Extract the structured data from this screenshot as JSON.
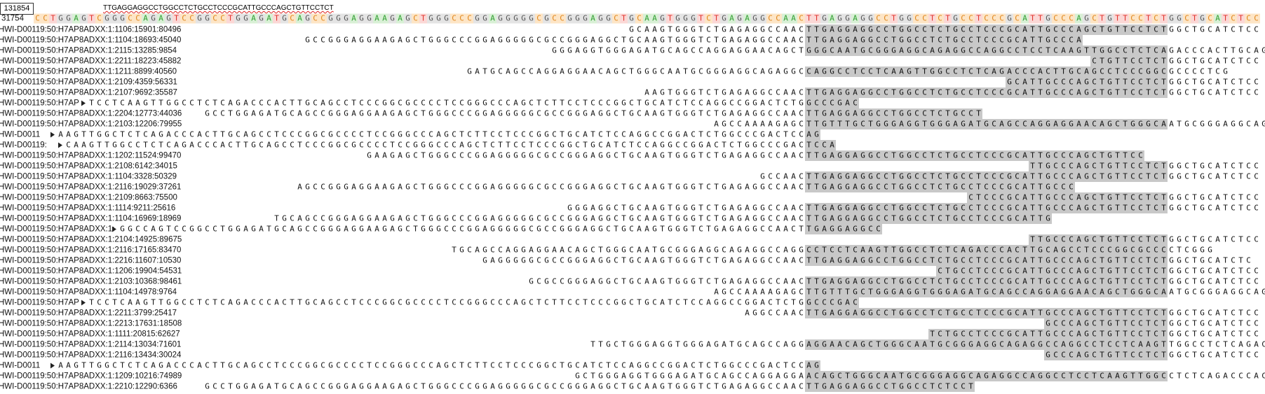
{
  "search": {
    "position": "131854",
    "query": "TTGAGGAGGCCTGGCCTCTGCCTCCCGCATTGCCCAGCTGTTCCTCT"
  },
  "reference": {
    "label": "31754",
    "sequence": "CCTGGAGTCGGGCCAGAGTCCGGCCTGGAGATGCAGCCGGGAGGAAGAGCTGGGCCCGGAGGGGGCGCCGGGAGGCTGCAAGTGGGTCTGAGAGGCCAACTTGAGGAGGCCTGGCCTCTGCCTCCCGCATTGCCCAGCTGTTCCTCTGGCTGCATCTCC",
    "base_colors": {
      "A": {
        "text": "#2f9e2f",
        "background": "#d9f0d6"
      },
      "C": {
        "text": "#e0861a",
        "background": "#fde5c6"
      },
      "G": {
        "text": "#555555",
        "background": "#e4e4e4"
      },
      "T": {
        "text": "#e0302a",
        "background": "#fbd8d6"
      }
    }
  },
  "match_color": "#c8c8c8",
  "reads": [
    {
      "name": "HWI-D00119:50:H7AP8ADXX:1:1106:15901:80496",
      "offset": 77,
      "sequence": "GCAAGTGGGTCTGAGAGGCCAACTTGAGGAGGCCTGGCCTCTGCCTCCCGCATTGCCCAGCTGTTCCTCTGGCTGCATCTCC"
    },
    {
      "name": "HWI-D00119:50:H7AP8ADXX:1:1104:18693:45040",
      "offset": 35,
      "sequence": "GCCGGGAGGAAGAGCTGGGCCCGGAGGGGGCGCCGGGAGGCTGCAAGTGGGTCTGAGAGGCCAACTTGAGGAGGCCTGGCCTCTGCCTCCCGCATTGCCCA"
    },
    {
      "name": "HWI-D00119:50:H7AP8ADXX:1:2115:13285:9854",
      "offset": 67,
      "sequence": "GGGAGGTGGGAGATGCAGCCAGGAGGAACAGCTGGGCAATGCGGGAGGCAGAGGCCAGGCCTCCTCAAGTTGGCCTCTCAGACCCACTTGCAG"
    },
    {
      "name": "HWI-D00119:50:H7AP8ADXX:1:2211:18223:45882",
      "offset": 137,
      "sequence": "CTGTTCCTCTGGCTGCATCTCC"
    },
    {
      "name": "HWI-D00119:50:H7AP8ADXX:1:1211:8899:40560",
      "offset": 56,
      "sequence": "GATGCAGCCAGGAGGAACAGCTGGGCAATGCGGGAGGCAGAGGCCAGGCCTCCTCAAGTTGGCCTCTCAGACCCACTTGCAGCCTCCCGGCGCCCCTCG"
    },
    {
      "name": "HWI-D00119:50:H7AP8ADXX:1:2109:4359:56331",
      "offset": 126,
      "sequence": "GCATTGCCCAGCTGTTCCTCTGGCTGCATCTCC"
    },
    {
      "name": "HWI-D00119:50:H7AP8ADXX:1:2107:9692:35587",
      "offset": 79,
      "sequence": "AAGTGGGTCTGAGAGGCCAACTTGAGGAGGCCTGGCCTCTGCCTCCCGCATTGCCCAGCTGTTCCTCTGGCTGCATCTCC"
    },
    {
      "name": "HWI-D00119:50:H7AP",
      "offset": 7,
      "sequence": "TCCTCAAGTTGGCCTCTCAGACCCACTTGCAGCCTCCCGGCGCCCCTCCGGGCCCAGCTCTTCCTCCCGGCTGCATCTCCAGGCCGGACTCTGGCCCGAC"
    },
    {
      "name": "HWI-D00119:50:H7AP8ADXX:1:2204:12773:44036",
      "offset": 22,
      "sequence": "GCCTGGAGATGCAGCCGGGAGGAAGAGCTGGGCCCGGAGGGGGCGCCGGGAGGCTGCAAGTGGGTCTGAGAGGCCAACTTGAGGAGGCCTGGCCTCTGCCT"
    },
    {
      "name": "HWI-D00119:50:H7AP8ADXX:1:2103:12206:79955",
      "offset": 88,
      "sequence": "AGCCAAAAGAGCTTGTTTGCTGGGAGGTGGGAGATGCAGCCAGGAGGAACAGCTGGGCAATGCGGGAGGCAG"
    },
    {
      "name": "HWI-D0011",
      "offset": 3,
      "sequence": "AAGTTGGCTCTCAGACCCACTTGCAGCCTCCCGGCGCCCCTCCGGGCCCAGCTCTTCCTCCCGGCTGCATCTCCAGGCCGGACTCTGGCCCGACTCCAG"
    },
    {
      "name": "HWI-D00119:",
      "offset": 4,
      "sequence": "CAAGTTGGCCTCTCAGACCCACTTGCAGCCTCCCGGCGCCCCTCCGGGCCCAGCTCTTCCTCCCGGCTGCATCTCCAGGCCGGACTCTGGCCCGACTCCA"
    },
    {
      "name": "HWI-D00119:50:H7AP8ADXX:1:1202:11524:99470",
      "offset": 43,
      "sequence": "GAAGAGCTGGGCCCGGAGGGGGCGCCGGGAGGCTGCAAGTGGGTCTGAGAGGCCAACTTGAGGAGGCCTGGCCTCTGCCTCCCGCATTGCCCAGCTGTTCC"
    },
    {
      "name": "HWI-D00119:50:H7AP8ADXX:1:2108:6142:34015",
      "offset": 129,
      "sequence": "TTGCCCAGCTGTTCCTCTGGCTGCATCTCC"
    },
    {
      "name": "HWI-D00119:50:H7AP8ADXX:1:1104:3328:50329",
      "offset": 94,
      "sequence": "GCCAACTTGAGGAGGCCTGGCCTCTGCCTCCCGCATTGCCCAGCTGTTCCTCTGGCTGCATCTCC"
    },
    {
      "name": "HWI-D00119:50:H7AP8ADXX:1:2116:19029:37261",
      "offset": 34,
      "sequence": "AGCCGGGAGGAAGAGCTGGGCCCGGAGGGGGCGCCGGGAGGCTGCAAGTGGGTCTGAGAGGCCAACTTGAGGAGGCCTGGCCTCTGCCTCCCGCATTGCCC"
    },
    {
      "name": "HWI-D00119:50:H7AP8ADXX:1:2109:8663:75500",
      "offset": 121,
      "sequence": "CTCCCGCATTGCCCAGCTGTTCCTCTGGCTGCATCTCC"
    },
    {
      "name": "HWI-D00119:50:H7AP8ADXX:1:1114:9211:25616",
      "offset": 69,
      "sequence": "GGGAGGCTGCAAGTGGGTCTGAGAGGCCAACTTGAGGAGGCCTGGCCTCTGCCTCCCGCATTGCCCAGCTGTTCCTCTGGCTGCATCTCC"
    },
    {
      "name": "HWI-D00119:50:H7AP8ADXX:1:1104:16969:18969",
      "offset": 31,
      "sequence": "TGCAGCCGGGAGGAAGAGCTGGGCCCGGAGGGGGCGCCGGGAGGCTGCAAGTGGGTCTGAGAGGCCAACTTGAGGAGGCCTGGCCTCTGCCTCCCGCATTG"
    },
    {
      "name": "HWI-D00119:50:H7AP8ADXX:1:",
      "offset": 11,
      "sequence": "GGCCAGTCCGGCCTGGAGATGCAGCCGGGAGGAAGAGCTGGGCCCGGAGGGGGCGCCGGGAGGCTGCAAGTGGGTCTGAGAGGCCAACTTGAGGAGGCC"
    },
    {
      "name": "HWI-D00119:50:H7AP8ADXX:1:2104:14925:89675",
      "offset": 129,
      "sequence": "TTGCCCAGCTGTTCCTCTGGCTGCATCTCC"
    },
    {
      "name": "HWI-D00119:50:H7AP8ADXX:1:2116:17165:83470",
      "offset": 54,
      "sequence": "TGCAGCCAGGAGGAACAGCTGGGCAATGCGGGAGGCAGAGGCCAGGCCTCCTCAAGTTGGCCTCTCAGACCCACTTGCAGCCTCCCGGCGCCCCTCGGG"
    },
    {
      "name": "HWI-D00119:50:H7AP8ADXX:1:2216:11607:10530",
      "offset": 58,
      "sequence": "GAGGGGGCGCCGGGAGGCTGCAAGTGGGTCTGAGAGGCCAACTTGAGGAGGCCTGGCCTCTGCCTCCCGCATTGCCCAGCTGTTCCTCTGGCTGCATCTC"
    },
    {
      "name": "HWI-D00119:50:H7AP8ADXX:1:1206:19904:54531",
      "offset": 117,
      "sequence": "CTGCCTCCCGCATTGCCCAGCTGTTCCTCTGGCTGCATCTCC"
    },
    {
      "name": "HWI-D00119:50:H7AP8ADXX:1:2103:10368:98461",
      "offset": 64,
      "sequence": "GCGCCGGGAGGCTGCAAGTGGGTCTGAGAGGCCAACTTGAGGAGGCCTGGCCTCTGCCTCCCGCATTGCCCAGCTGTTCCTCTGGCTGCATCTCC"
    },
    {
      "name": "HWI-D00119:50:H7AP8ADXX:1:1104:14978:9764",
      "offset": 88,
      "sequence": "AGCCAAAAGAGCTTGTTTGCTGGGAGGTGGGAGATGCAGCCAGGAGGAACAGCTGGGCAATGCGGGAGGCAG"
    },
    {
      "name": "HWI-D00119:50:H7AP",
      "offset": 7,
      "sequence": "TCCTCAAGTTGGCCTCTCAGACCCACTTGCAGCCTCCCGGCGCCCCTCCGGGCCCAGCTCTTCCTCCCGGCTGCATCTCCAGGCCGGACTCTGGCCCGAC"
    },
    {
      "name": "HWI-D00119:50:H7AP8ADXX:1:2211:3799:25417",
      "offset": 92,
      "sequence": "AGGCCAACTTGAGGAGGCCTGGCCTCTGCCTCCCGCATTGCCCAGCTGTTCCTCTGGCTGCATCTCC"
    },
    {
      "name": "HWI-D00119:50:H7AP8ADXX:1:2213:17631:18508",
      "offset": 131,
      "sequence": "GCCCAGCTGTTCCTCTGGCTGCATCTCC"
    },
    {
      "name": "HWI-D00119:50:H7AP8ADXX:1:1111:20815:62627",
      "offset": 116,
      "sequence": "TCTGCCTCCCGCATTGCCCAGCTGTTCCTCTGGCTGCATCTCC"
    },
    {
      "name": "HWI-D00119:50:H7AP8ADXX:1:2114:13034:71601",
      "offset": 72,
      "sequence": "TTGCTGGGAGGTGGGAGATGCAGCCAGGAGGAACAGCTGGGCAATGCGGGAGGCAGAGGCCAGGCCTCCTCAAGTTGGCCTCTCAGAC"
    },
    {
      "name": "HWI-D00119:50:H7AP8ADXX:1:2116:13434:30024",
      "offset": 131,
      "sequence": "GCCCAGCTGTTCCTCTGGCTGCATCTCC"
    },
    {
      "name": "HWI-D0011",
      "offset": 3,
      "sequence": "AAGTTGGCTCTCAGACCCACTTGCAGCCTCCCGGCGCCCCTCCGGGCCCAGCTCTTCCTCCCGGCTGCATCTCCAGGCCGGACTCTGGCCCGACTCCAG"
    },
    {
      "name": "HWI-D00119:50:H7AP8ADXX:1:1209:10216:74989",
      "offset": 70,
      "sequence": "GCTGGGAGGTGGGAGATGCAGCCAGGAGGAACAGCTGGGCAATGCGGGAGGCAGAGGCCAGGCCTCCTCAAGTTGGCCTCTCAGACCCACC"
    },
    {
      "name": "HWI-D00119:50:H7AP8ADXX:1:2210:12290:6366",
      "offset": 22,
      "sequence": "GCCTGGAGATGCAGCCGGGAGGAAGAGCTGGGCCCGGAGGGGGCGCCGGGAGGCTGCAAGTGGGTCTGAGAGGCCAACTTGAGGAGGCCTGGCCTCTCCT"
    }
  ]
}
